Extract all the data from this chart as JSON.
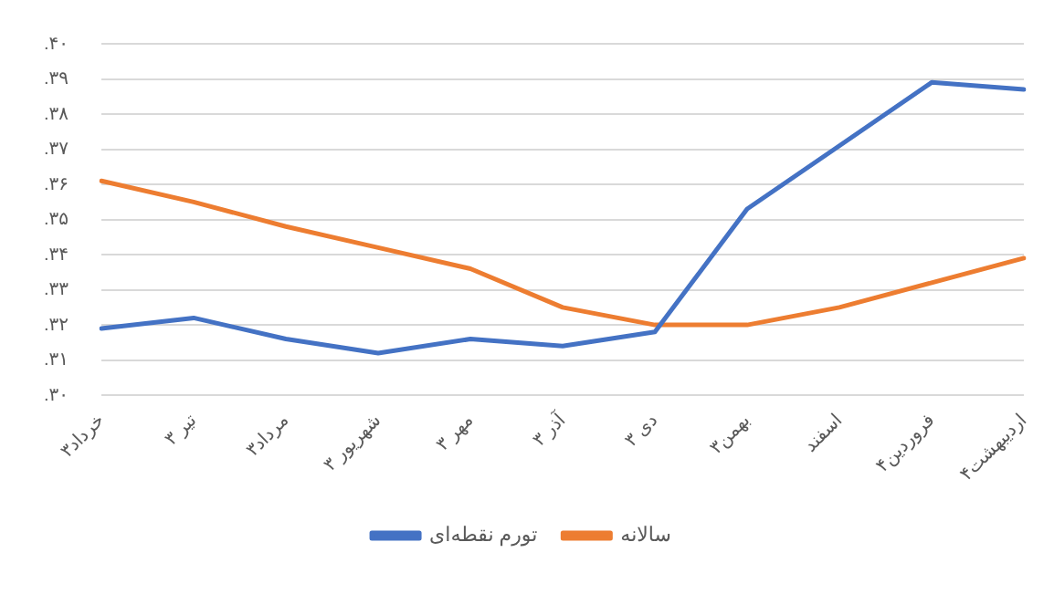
{
  "chart_data": {
    "type": "line",
    "categories": [
      "خرداد۳",
      "تیر ۳",
      "مرداد۳",
      "شهریور ۳",
      "مهر ۳",
      "آذر ۳",
      "دی ۳",
      "بهمن۳",
      "اسفند",
      "فروردین۴",
      "اردیبهشت۴"
    ],
    "series": [
      {
        "name": "تورم نقطه‌ای",
        "color": "#4472c4",
        "values": [
          0.319,
          0.322,
          0.316,
          0.312,
          0.316,
          0.314,
          0.318,
          0.353,
          0.371,
          0.389,
          0.387
        ]
      },
      {
        "name": "سالانه",
        "color": "#ed7d31",
        "values": [
          0.361,
          0.355,
          0.348,
          0.342,
          0.336,
          0.325,
          0.32,
          0.32,
          0.325,
          0.332,
          0.339
        ]
      }
    ],
    "ylim": [
      0.3,
      0.4
    ],
    "yticks": [
      {
        "value": 0.3,
        "label": ".۳۰"
      },
      {
        "value": 0.31,
        "label": ".۳۱"
      },
      {
        "value": 0.32,
        "label": ".۳۲"
      },
      {
        "value": 0.33,
        "label": ".۳۳"
      },
      {
        "value": 0.34,
        "label": ".۳۴"
      },
      {
        "value": 0.35,
        "label": ".۳۵"
      },
      {
        "value": 0.36,
        "label": ".۳۶"
      },
      {
        "value": 0.37,
        "label": ".۳۷"
      },
      {
        "value": 0.38,
        "label": ".۳۸"
      },
      {
        "value": 0.39,
        "label": ".۳۹"
      },
      {
        "value": 0.4,
        "label": ".۴۰"
      }
    ],
    "grid": "y",
    "legend": "bottom",
    "marker": "none",
    "line_style": "solid"
  }
}
